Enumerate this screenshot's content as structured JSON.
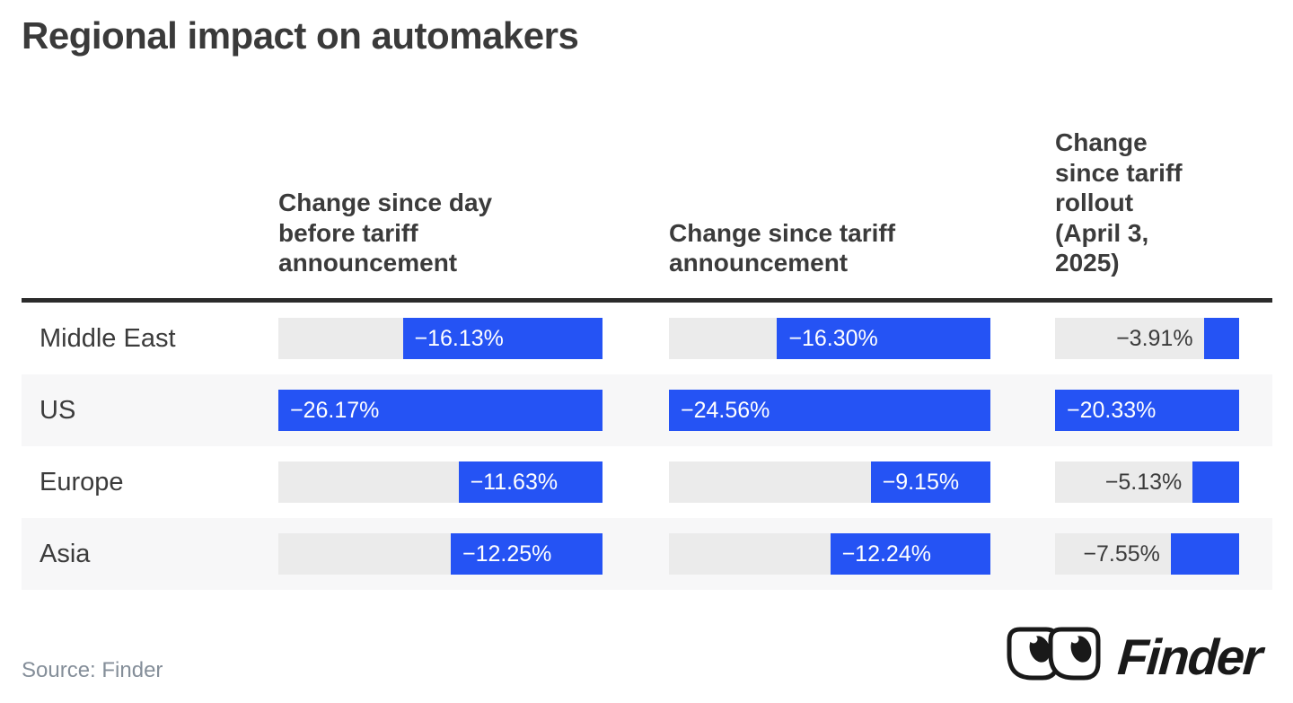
{
  "title": "Regional impact on automakers",
  "source": "Source: Finder",
  "brand": {
    "name": "Finder"
  },
  "columns": [
    "Change since day before tariff announcement",
    "Change since tariff announcement",
    "Change since tariff rollout (April 3, 2025)"
  ],
  "rows": [
    {
      "region": "Middle East",
      "cells": [
        "−16.13%",
        "−16.30%",
        "−3.91%"
      ]
    },
    {
      "region": "US",
      "cells": [
        "−26.17%",
        "−24.56%",
        "−20.33%"
      ]
    },
    {
      "region": "Europe",
      "cells": [
        "−11.63%",
        "−9.15%",
        "−5.13%"
      ]
    },
    {
      "region": "Asia",
      "cells": [
        "−12.25%",
        "−12.24%",
        "−7.55%"
      ]
    }
  ],
  "colors": {
    "bar": "#2553f4",
    "track": "#ebebeb",
    "alt_row": "#f7f7f8",
    "heading_text": "#3b3b3b",
    "source_text": "#848e99",
    "rule": "#2b2b2b",
    "logo": "#191919"
  },
  "chart_data": {
    "type": "bar",
    "title": "Regional impact on automakers",
    "categories": [
      "Middle East",
      "US",
      "Europe",
      "Asia"
    ],
    "series": [
      {
        "name": "Change since day before tariff announcement",
        "values": [
          -16.13,
          -26.17,
          -11.63,
          -12.25
        ]
      },
      {
        "name": "Change since tariff announcement",
        "values": [
          -16.3,
          -24.56,
          -9.15,
          -12.24
        ]
      },
      {
        "name": "Change since tariff rollout (April 3, 2025)",
        "values": [
          -3.91,
          -20.33,
          -5.13,
          -7.55
        ]
      }
    ],
    "unit": "%",
    "orientation": "horizontal",
    "bar_anchor": "right",
    "scale": "per-column, column maximum magnitude fills full track",
    "source": "Finder",
    "legend_position": "column-headers",
    "grid": false
  }
}
